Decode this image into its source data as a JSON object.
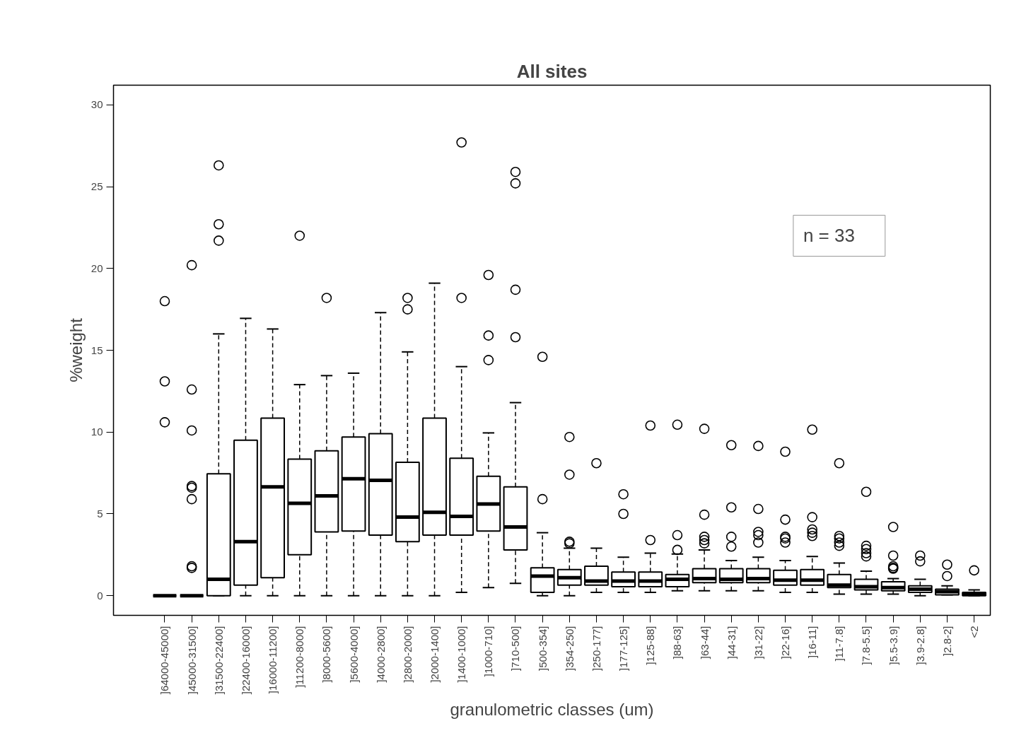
{
  "chart_data": {
    "type": "box",
    "title": "All sites",
    "xlabel": "granulometric classes (um)",
    "ylabel": "%weight",
    "categories": [
      "]64000-45000]",
      "]45000-31500]",
      "]31500-22400]",
      "]22400-16000]",
      "]16000-11200]",
      "]11200-8000]",
      "]8000-5600]",
      "]5600-4000]",
      "]4000-2800]",
      "]2800-2000]",
      "]2000-1400]",
      "]1400-1000]",
      "]1000-710]",
      "]710-500]",
      "]500-354]",
      "]354-250]",
      "]250-177]",
      "]177-125]",
      "]125-88]",
      "]88-63]",
      "]63-44]",
      "]44-31]",
      "]31-22]",
      "]22-16]",
      "]16-11]",
      "]11-7.8]",
      "]7.8-5.5]",
      "]5.5-3.9]",
      "]3.9-2.8]",
      "]2.8-2]",
      "<2"
    ],
    "boxes": [
      {
        "low": 0,
        "q1": 0,
        "median": 0,
        "q3": 0,
        "high": 0,
        "outliers": [
          18.0,
          13.1,
          10.6
        ]
      },
      {
        "low": 0,
        "q1": 0,
        "median": 0,
        "q3": 0,
        "high": 0,
        "outliers": [
          20.2,
          12.6,
          10.1,
          6.7,
          6.6,
          5.9,
          1.8,
          1.7
        ]
      },
      {
        "low": 0,
        "q1": 0,
        "median": 1.0,
        "q3": 7.45,
        "high": 16.0,
        "outliers": [
          26.3,
          22.7,
          21.7
        ]
      },
      {
        "low": 0,
        "q1": 0.65,
        "median": 3.3,
        "q3": 9.5,
        "high": 16.95
      },
      {
        "low": 0,
        "q1": 1.1,
        "median": 6.65,
        "q3": 10.85,
        "high": 16.3
      },
      {
        "low": 0,
        "q1": 2.5,
        "median": 5.65,
        "q3": 8.35,
        "high": 12.9,
        "outliers": [
          22.0
        ]
      },
      {
        "low": 0,
        "q1": 3.9,
        "median": 6.1,
        "q3": 8.85,
        "high": 13.45,
        "outliers": [
          18.2
        ]
      },
      {
        "low": 0,
        "q1": 3.95,
        "median": 7.15,
        "q3": 9.7,
        "high": 13.6
      },
      {
        "low": 0,
        "q1": 3.7,
        "median": 7.05,
        "q3": 9.9,
        "high": 17.3
      },
      {
        "low": 0,
        "q1": 3.3,
        "median": 4.8,
        "q3": 8.15,
        "high": 14.9,
        "outliers": [
          18.2,
          17.5
        ]
      },
      {
        "low": 0,
        "q1": 3.7,
        "median": 5.1,
        "q3": 10.85,
        "high": 19.1
      },
      {
        "low": 0.2,
        "q1": 3.7,
        "median": 4.85,
        "q3": 8.4,
        "high": 14.0,
        "outliers": [
          27.7,
          18.2
        ]
      },
      {
        "low": 0.5,
        "q1": 3.95,
        "median": 5.6,
        "q3": 7.3,
        "high": 9.95,
        "outliers": [
          19.6,
          15.9,
          14.4
        ]
      },
      {
        "low": 0.75,
        "q1": 2.8,
        "median": 4.2,
        "q3": 6.65,
        "high": 11.8,
        "outliers": [
          25.9,
          25.2,
          18.7,
          15.8
        ]
      },
      {
        "low": 0,
        "q1": 0.2,
        "median": 1.2,
        "q3": 1.7,
        "high": 3.85,
        "outliers": [
          14.6,
          5.9
        ]
      },
      {
        "low": 0,
        "q1": 0.65,
        "median": 1.1,
        "q3": 1.6,
        "high": 2.9,
        "outliers": [
          9.7,
          7.4,
          3.3,
          3.2
        ]
      },
      {
        "low": 0.2,
        "q1": 0.65,
        "median": 0.9,
        "q3": 1.8,
        "high": 2.9,
        "outliers": [
          8.1
        ]
      },
      {
        "low": 0.2,
        "q1": 0.55,
        "median": 0.9,
        "q3": 1.45,
        "high": 2.35,
        "outliers": [
          6.2,
          5.0
        ]
      },
      {
        "low": 0.2,
        "q1": 0.55,
        "median": 0.9,
        "q3": 1.45,
        "high": 2.6,
        "outliers": [
          10.4,
          3.4
        ]
      },
      {
        "low": 0.3,
        "q1": 0.55,
        "median": 1.0,
        "q3": 1.3,
        "high": 2.55,
        "outliers": [
          10.45,
          3.7,
          2.8
        ]
      },
      {
        "low": 0.3,
        "q1": 0.8,
        "median": 1.05,
        "q3": 1.65,
        "high": 2.8,
        "outliers": [
          10.2,
          4.95,
          3.6,
          3.4,
          3.2
        ]
      },
      {
        "low": 0.3,
        "q1": 0.8,
        "median": 1.0,
        "q3": 1.65,
        "high": 2.15,
        "outliers": [
          9.2,
          5.4,
          3.6,
          3.0
        ]
      },
      {
        "low": 0.3,
        "q1": 0.8,
        "median": 1.05,
        "q3": 1.65,
        "high": 2.35,
        "outliers": [
          9.15,
          5.3,
          3.9,
          3.7,
          3.25
        ]
      },
      {
        "low": 0.2,
        "q1": 0.65,
        "median": 0.95,
        "q3": 1.55,
        "high": 2.15,
        "outliers": [
          8.8,
          4.65,
          3.6,
          3.5,
          3.25
        ]
      },
      {
        "low": 0.2,
        "q1": 0.65,
        "median": 0.95,
        "q3": 1.6,
        "high": 2.4,
        "outliers": [
          10.15,
          4.8,
          4.05,
          3.85,
          3.65
        ]
      },
      {
        "low": 0.1,
        "q1": 0.5,
        "median": 0.65,
        "q3": 1.3,
        "high": 2.0,
        "outliers": [
          8.1,
          3.65,
          3.5,
          3.25,
          3.05
        ]
      },
      {
        "low": 0.1,
        "q1": 0.35,
        "median": 0.55,
        "q3": 1.0,
        "high": 1.5,
        "outliers": [
          6.35,
          3.05,
          2.85,
          2.6,
          2.4
        ]
      },
      {
        "low": 0.1,
        "q1": 0.3,
        "median": 0.5,
        "q3": 0.85,
        "high": 1.05,
        "outliers": [
          4.2,
          2.45,
          1.8,
          1.7,
          1.65
        ]
      },
      {
        "low": 0,
        "q1": 0.2,
        "median": 0.4,
        "q3": 0.6,
        "high": 1.0,
        "outliers": [
          2.45,
          2.1
        ]
      },
      {
        "low": 0.05,
        "q1": 0.05,
        "median": 0.25,
        "q3": 0.4,
        "high": 0.6,
        "outliers": [
          1.9,
          1.2
        ]
      },
      {
        "low": 0,
        "q1": 0,
        "median": 0.1,
        "q3": 0.2,
        "high": 0.35,
        "outliers": [
          1.55
        ]
      }
    ],
    "ylim": [
      -1.2,
      31.2
    ],
    "yticks": [
      0,
      5,
      10,
      15,
      20,
      25,
      30
    ],
    "annotations": [
      "n = 33"
    ],
    "line_style": "dashed",
    "marker": "circle",
    "grid": false
  }
}
